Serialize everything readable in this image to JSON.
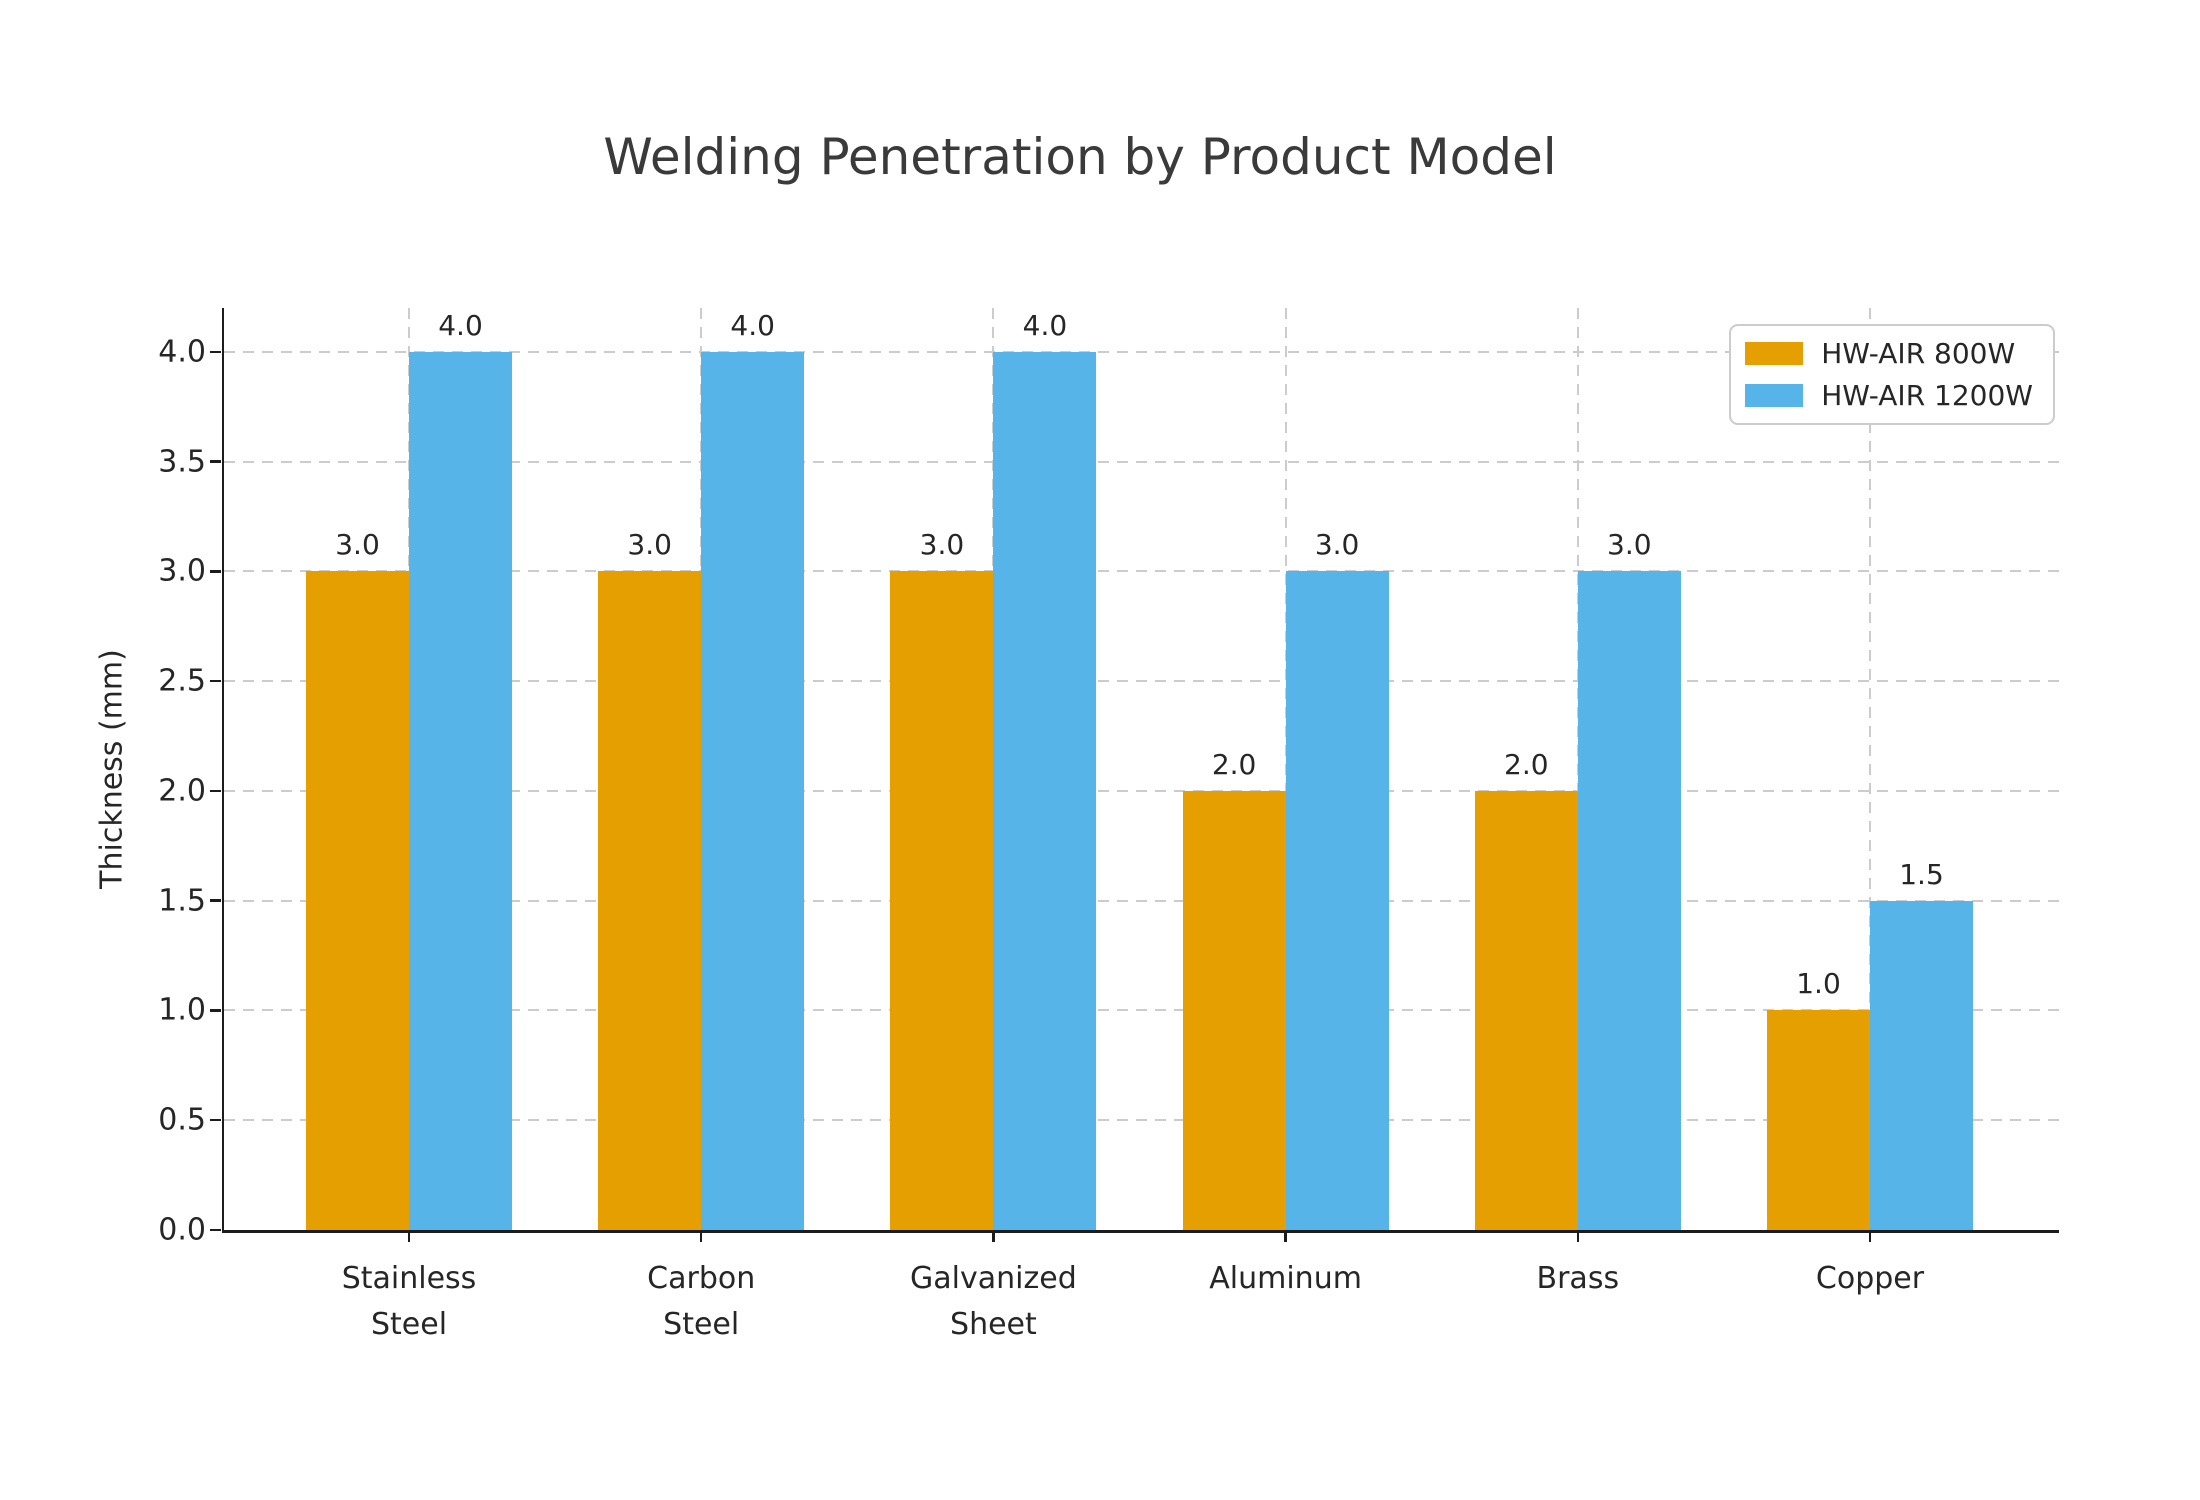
{
  "title": "Welding Penetration by Product Model",
  "chart_data": {
    "type": "bar",
    "title": "Welding Penetration by Product Model",
    "categories": [
      "Stainless Steel",
      "Carbon Steel",
      "Galvanized Sheet",
      "Aluminum",
      "Brass",
      "Copper"
    ],
    "series": [
      {
        "name": "HW-AIR 800W",
        "color": "#E69F00",
        "values": [
          3.0,
          3.0,
          3.0,
          2.0,
          2.0,
          1.0
        ],
        "value_labels": [
          "3.0",
          "3.0",
          "3.0",
          "2.0",
          "2.0",
          "1.0"
        ]
      },
      {
        "name": "HW-AIR 1200W",
        "color": "#56B4E9",
        "values": [
          4.0,
          4.0,
          4.0,
          3.0,
          3.0,
          1.5
        ],
        "value_labels": [
          "4.0",
          "4.0",
          "4.0",
          "3.0",
          "3.0",
          "1.5"
        ]
      }
    ],
    "xlabel": "",
    "ylabel": "Thickness (mm)",
    "ylim": [
      0,
      4.2
    ],
    "yticks": [
      "0.0",
      "0.5",
      "1.0",
      "1.5",
      "2.0",
      "2.5",
      "3.0",
      "3.5",
      "4.0"
    ],
    "grid": true,
    "grid_style": "dashed",
    "legend_position": "upper right"
  },
  "colors": {
    "background": "#ffffff",
    "text": "#262626",
    "title_text": "#3a3a3a",
    "spine": "#1c1c1c",
    "grid": "#cccccc",
    "legend_border": "#cccccc"
  }
}
